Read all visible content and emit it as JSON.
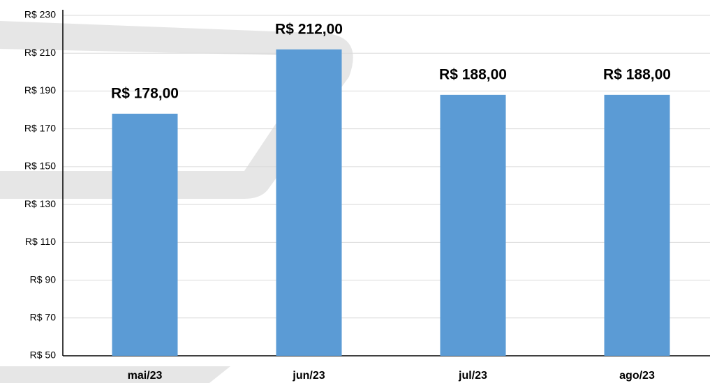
{
  "chart_data": {
    "type": "bar",
    "categories": [
      "mai/23",
      "jun/23",
      "jul/23",
      "ago/23"
    ],
    "values": [
      178,
      212,
      188,
      188
    ],
    "value_labels": [
      "R$ 178,00",
      "R$ 212,00",
      "R$ 188,00",
      "R$ 188,00"
    ],
    "color": "#5b9bd5",
    "ylim": [
      50,
      230
    ],
    "yticks": [
      {
        "value": 50,
        "label": "R$ 50"
      },
      {
        "value": 70,
        "label": "R$ 70"
      },
      {
        "value": 90,
        "label": "R$ 90"
      },
      {
        "value": 110,
        "label": "R$ 110"
      },
      {
        "value": 130,
        "label": "R$ 130"
      },
      {
        "value": 150,
        "label": "R$ 150"
      },
      {
        "value": 170,
        "label": "R$ 170"
      },
      {
        "value": 190,
        "label": "R$ 190"
      },
      {
        "value": 210,
        "label": "R$ 210"
      },
      {
        "value": 230,
        "label": "R$ 230"
      }
    ],
    "grid": true
  }
}
